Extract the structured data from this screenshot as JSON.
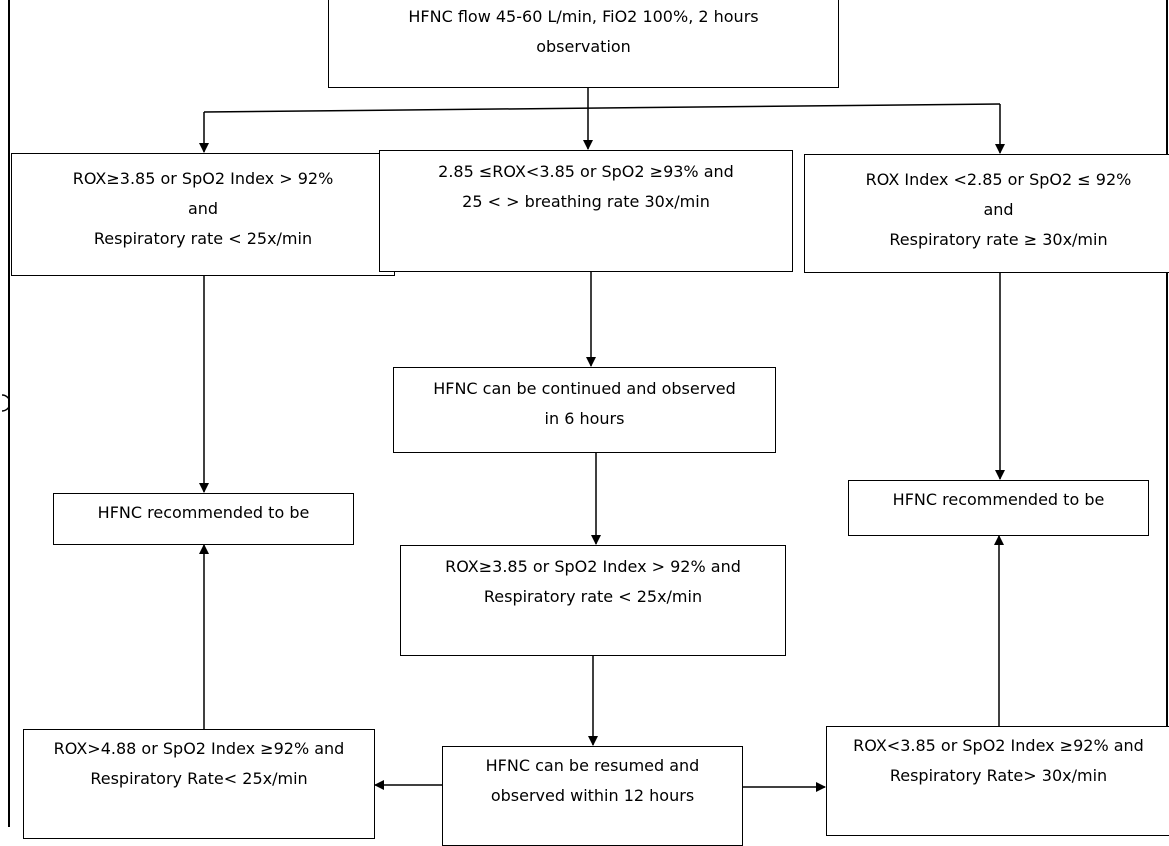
{
  "boxes": {
    "start": [
      "HFNC flow 45-60 L/min, FiO2 100%, 2 hours",
      "observation"
    ],
    "left_criteria": [
      "ROX≥3.85 or SpO2 Index > 92%",
      "and",
      "Respiratory rate < 25x/min"
    ],
    "middle_criteria": [
      "2.85 ≤ROX<3.85 or SpO2 ≥93% and",
      "25 < > breathing rate 30x/min"
    ],
    "right_criteria": [
      "ROX Index <2.85 or SpO2 ≤ 92%",
      "and",
      "Respiratory rate ≥ 30x/min"
    ],
    "continue_6h": [
      "HFNC can be continued and observed",
      "in 6 hours"
    ],
    "left_recommend": [
      "HFNC recommended to be"
    ],
    "right_recommend": [
      "HFNC recommended to be"
    ],
    "middle_recheck": [
      "ROX≥3.85 or SpO2 Index > 92% and",
      "Respiratory rate < 25x/min"
    ],
    "left_bottom": [
      "ROX>4.88 or SpO2 Index ≥92% and",
      "Respiratory Rate< 25x/min"
    ],
    "resume_12h": [
      "HFNC can be resumed and",
      "observed within 12 hours"
    ],
    "right_bottom": [
      "ROX<3.85 or SpO2 Index ≥92% and",
      "Respiratory Rate> 30x/min"
    ]
  }
}
